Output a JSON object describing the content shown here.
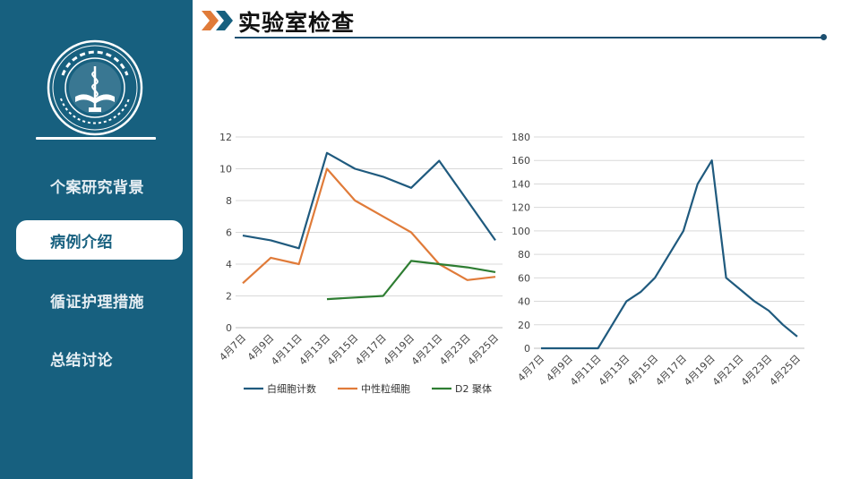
{
  "page": {
    "title": "实验室检查",
    "accent_color": "#17607f",
    "arrow_colors": [
      "#e07b39",
      "#17607f"
    ]
  },
  "sidebar": {
    "logo_icon": "university-seal-logo",
    "logo_text": "天津医科大学 TIANJIN MEDICAL UNIVERSITY",
    "items": [
      {
        "label": "个案研究背景",
        "active": false
      },
      {
        "label": "病例介绍",
        "active": true
      },
      {
        "label": "循证护理措施",
        "active": false
      },
      {
        "label": "总结讨论",
        "active": false
      }
    ]
  },
  "chart_data": [
    {
      "type": "line",
      "categories": [
        "4月7日",
        "4月9日",
        "4月11日",
        "4月13日",
        "4月15日",
        "4月17日",
        "4月19日",
        "4月21日",
        "4月23日",
        "4月25日"
      ],
      "ylim": [
        0,
        12
      ],
      "yticks": [
        0,
        2,
        4,
        6,
        8,
        10,
        12
      ],
      "grid": true,
      "legend_position": "bottom",
      "series": [
        {
          "name": "白细胞计数",
          "color": "#1f5a7e",
          "values": [
            5.8,
            5.5,
            5.0,
            11.0,
            10.0,
            9.5,
            8.8,
            10.5,
            8.0,
            5.5
          ]
        },
        {
          "name": "中性粒细胞",
          "color": "#e07b39",
          "values": [
            2.8,
            4.4,
            4.0,
            10.0,
            8.0,
            7.0,
            6.0,
            4.0,
            3.0,
            3.2
          ]
        },
        {
          "name": "D2 聚体",
          "color": "#2e7d32",
          "values": [
            null,
            null,
            null,
            1.8,
            1.9,
            2.0,
            4.2,
            4.0,
            3.8,
            3.5
          ]
        }
      ]
    },
    {
      "type": "line",
      "categories": [
        "4月7日",
        "4月9日",
        "4月11日",
        "4月13日",
        "4月15日",
        "4月17日",
        "4月19日",
        "4月21日",
        "4月23日",
        "4月25日"
      ],
      "ylim": [
        0,
        180
      ],
      "yticks": [
        0,
        20,
        40,
        60,
        80,
        100,
        120,
        140,
        160,
        180
      ],
      "grid": true,
      "series": [
        {
          "color": "#1f5a7e",
          "x": [
            0,
            1,
            2,
            3,
            3.5,
            4,
            5,
            5.5,
            6,
            6.5,
            7,
            7.5,
            8,
            8.5,
            9
          ],
          "values": [
            0,
            0,
            0,
            40,
            48,
            60,
            100,
            140,
            160,
            60,
            50,
            40,
            32,
            20,
            10
          ]
        }
      ]
    }
  ]
}
